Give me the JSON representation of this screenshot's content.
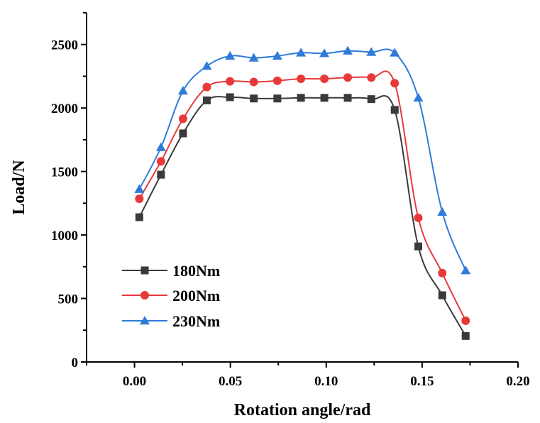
{
  "chart_data": {
    "type": "line",
    "title": "",
    "xlabel": "Rotation angle/rad",
    "ylabel": "Load/N",
    "xlim": [
      -0.025,
      0.2
    ],
    "ylim": [
      0,
      2750
    ],
    "xticks": [
      0.0,
      0.05,
      0.1,
      0.15,
      0.2
    ],
    "xtick_labels": [
      "0.00",
      "0.05",
      "0.10",
      "0.15",
      "0.20"
    ],
    "yticks": [
      0,
      500,
      1000,
      1500,
      2000,
      2500
    ],
    "ytick_labels": [
      "0",
      "500",
      "1000",
      "1500",
      "2000",
      "2500"
    ],
    "grid": false,
    "legend_position": "bottom-left",
    "x": [
      0.0025,
      0.0138,
      0.0253,
      0.0377,
      0.0498,
      0.0622,
      0.0745,
      0.0868,
      0.099,
      0.1112,
      0.1235,
      0.1357,
      0.148,
      0.1605,
      0.1727
    ],
    "series": [
      {
        "name": "180Nm",
        "color": "#3a3a3a",
        "marker": "square",
        "values": [
          1140,
          1475,
          1800,
          2060,
          2085,
          2075,
          2075,
          2080,
          2080,
          2080,
          2070,
          1985,
          910,
          525,
          205
        ]
      },
      {
        "name": "200Nm",
        "color": "#e8393a",
        "marker": "circle",
        "values": [
          1285,
          1580,
          1915,
          2165,
          2210,
          2205,
          2215,
          2230,
          2230,
          2240,
          2240,
          2195,
          1135,
          700,
          325
        ]
      },
      {
        "name": "230Nm",
        "color": "#2f7cd8",
        "marker": "triangle",
        "values": [
          1360,
          1690,
          2135,
          2330,
          2410,
          2395,
          2410,
          2435,
          2430,
          2450,
          2440,
          2435,
          2080,
          1180,
          720
        ]
      }
    ]
  }
}
